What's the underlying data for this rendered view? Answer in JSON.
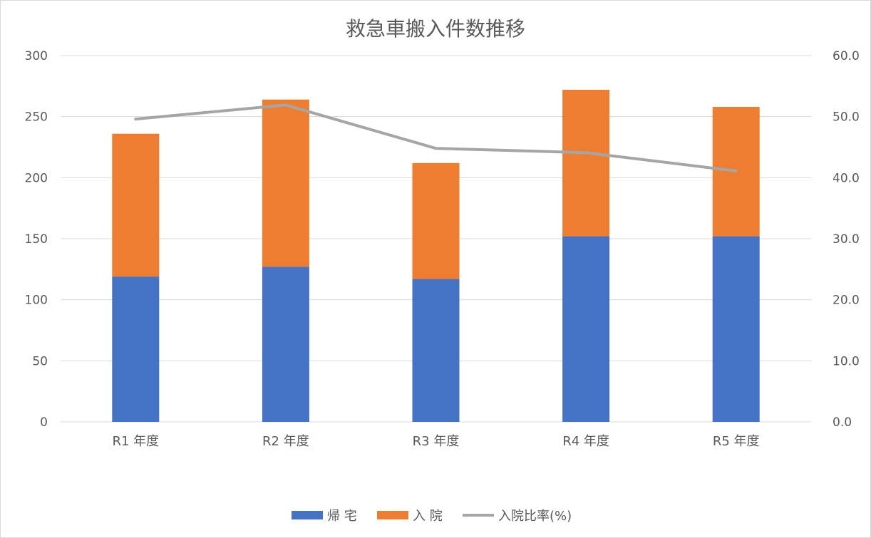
{
  "chart_data": {
    "type": "bar",
    "stacked": true,
    "title": "救急車搬入件数推移",
    "categories": [
      "R1 年度",
      "R2 年度",
      "R3 年度",
      "R4 年度",
      "R5 年度"
    ],
    "series": [
      {
        "name": "帰 宅",
        "type": "bar",
        "axis": "left",
        "color": "#4472C4",
        "values": [
          119,
          127,
          117,
          152,
          152
        ]
      },
      {
        "name": "入 院",
        "type": "bar",
        "axis": "left",
        "color": "#ED7D31",
        "values": [
          117,
          137,
          95,
          120,
          106
        ]
      },
      {
        "name": "入院比率(%)",
        "type": "line",
        "axis": "right",
        "color": "#A5A5A5",
        "values": [
          49.6,
          51.9,
          44.8,
          44.1,
          41.1
        ]
      }
    ],
    "y_left": {
      "min": 0,
      "max": 300,
      "step": 50,
      "ticks": [
        "0",
        "50",
        "100",
        "150",
        "200",
        "250",
        "300"
      ]
    },
    "y_right": {
      "min": 0,
      "max": 60,
      "step": 10,
      "ticks": [
        "0.0",
        "10.0",
        "20.0",
        "30.0",
        "40.0",
        "50.0",
        "60.0"
      ]
    },
    "grid": true,
    "legend_position": "bottom"
  }
}
